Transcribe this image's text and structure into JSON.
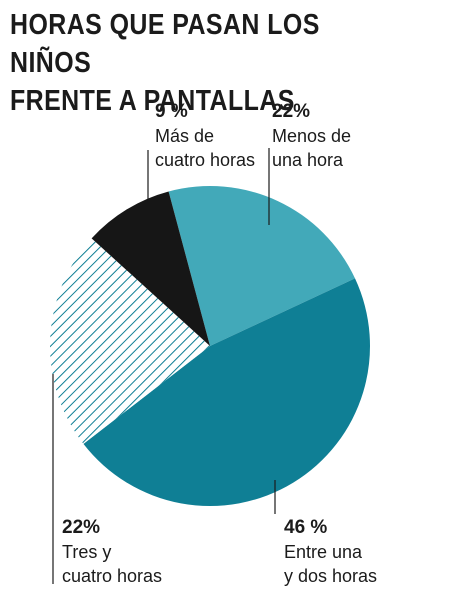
{
  "title_lines": [
    "HORAS QUE PASAN LOS NIÑOS",
    "FRENTE A PANTALLAS"
  ],
  "chart_data": {
    "type": "pie",
    "title": "HORAS QUE PASAN LOS NIÑOS FRENTE A PANTALLAS",
    "slices": [
      {
        "pct_label": "22%",
        "label": "Menos de\nuna hora",
        "value": 22,
        "color": "#42a9b9",
        "fill": "solid"
      },
      {
        "pct_label": "46 %",
        "label": "Entre una\ny dos horas",
        "value": 46,
        "color": "#0f7f95",
        "fill": "solid"
      },
      {
        "pct_label": "22%",
        "label": "Tres y\ncuatro horas",
        "value": 22,
        "color": "#0f7f95",
        "fill": "hatched"
      },
      {
        "pct_label": "9 %",
        "label": "Más de\ncuatro horas",
        "value": 9,
        "color": "#161616",
        "fill": "solid"
      }
    ]
  }
}
